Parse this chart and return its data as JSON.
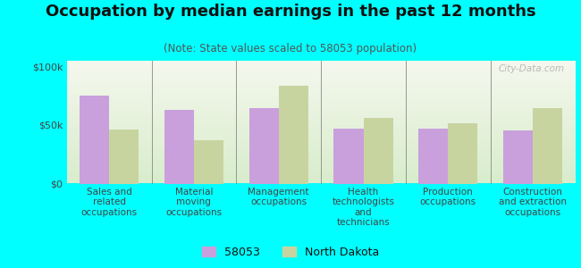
{
  "title": "Occupation by median earnings in the past 12 months",
  "subtitle": "(Note: State values scaled to 58053 population)",
  "categories": [
    "Sales and\nrelated\noccupations",
    "Material\nmoving\noccupations",
    "Management\noccupations",
    "Health\ntechnologists\nand\ntechnicians",
    "Production\noccupations",
    "Construction\nand extraction\noccupations"
  ],
  "values_58053": [
    75000,
    63000,
    64000,
    47000,
    47000,
    45000
  ],
  "values_nd": [
    46000,
    37000,
    83000,
    56000,
    51000,
    64000
  ],
  "color_58053": "#c9a0dc",
  "color_nd": "#c8d4a0",
  "bar_width": 0.35,
  "ylim": [
    0,
    105000
  ],
  "yticks": [
    0,
    50000,
    100000
  ],
  "ytick_labels": [
    "$0",
    "$50k",
    "$100k"
  ],
  "plot_bg_top": "#f5f8ee",
  "plot_bg_bottom": "#d8edcc",
  "outer_background": "#00ffff",
  "legend_labels": [
    "58053",
    "North Dakota"
  ],
  "watermark": "City-Data.com",
  "title_fontsize": 13,
  "subtitle_fontsize": 8.5,
  "tick_fontsize": 7.5,
  "ytick_fontsize": 8
}
